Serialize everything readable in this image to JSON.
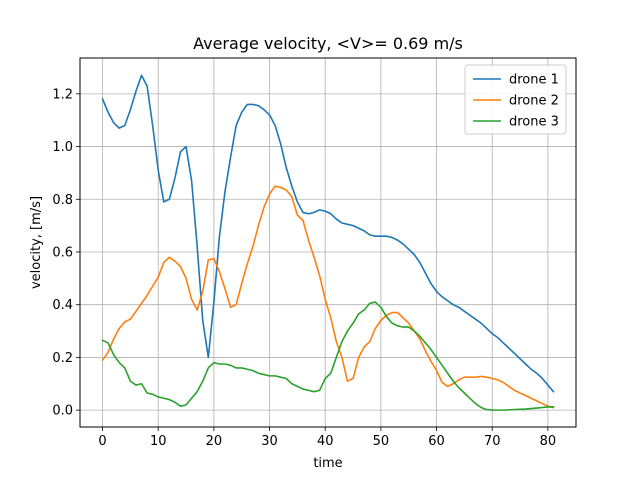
{
  "chart_data": {
    "type": "line",
    "title": "Average velocity, <V>= 0.69 m/s",
    "xlabel": "time",
    "ylabel": "velocity, [m/s]",
    "xlim": [
      -4.05,
      85.05
    ],
    "ylim": [
      -0.064,
      1.336
    ],
    "xticks": [
      0,
      10,
      20,
      30,
      40,
      50,
      60,
      70,
      80
    ],
    "yticks": [
      0.0,
      0.2,
      0.4,
      0.6,
      0.8,
      1.0,
      1.2
    ],
    "xtick_labels": [
      "0",
      "10",
      "20",
      "30",
      "40",
      "50",
      "60",
      "70",
      "80"
    ],
    "ytick_labels": [
      "0.0",
      "0.2",
      "0.4",
      "0.6",
      "0.8",
      "1.0",
      "1.2"
    ],
    "grid": true,
    "legend_position": "top-right",
    "x": [
      0,
      1,
      2,
      3,
      4,
      5,
      6,
      7,
      8,
      9,
      10,
      11,
      12,
      13,
      14,
      15,
      16,
      17,
      18,
      19,
      20,
      21,
      22,
      23,
      24,
      25,
      26,
      27,
      28,
      29,
      30,
      31,
      32,
      33,
      34,
      35,
      36,
      37,
      38,
      39,
      40,
      41,
      42,
      43,
      44,
      45,
      46,
      47,
      48,
      49,
      50,
      51,
      52,
      53,
      54,
      55,
      56,
      57,
      58,
      59,
      60,
      61,
      62,
      63,
      64,
      65,
      66,
      67,
      68,
      69,
      70,
      71,
      72,
      73,
      74,
      75,
      76,
      77,
      78,
      79,
      80,
      81
    ],
    "series": [
      {
        "name": "drone 1",
        "color": "#1f77b4",
        "values": [
          1.18,
          1.13,
          1.09,
          1.07,
          1.08,
          1.14,
          1.21,
          1.27,
          1.23,
          1.08,
          0.91,
          0.79,
          0.8,
          0.88,
          0.98,
          1.0,
          0.87,
          0.62,
          0.34,
          0.2,
          0.41,
          0.66,
          0.83,
          0.96,
          1.08,
          1.13,
          1.16,
          1.16,
          1.155,
          1.14,
          1.12,
          1.08,
          1.01,
          0.92,
          0.85,
          0.79,
          0.75,
          0.745,
          0.75,
          0.76,
          0.755,
          0.745,
          0.725,
          0.71,
          0.705,
          0.7,
          0.69,
          0.68,
          0.665,
          0.66,
          0.66,
          0.66,
          0.655,
          0.645,
          0.63,
          0.61,
          0.59,
          0.56,
          0.52,
          0.48,
          0.45,
          0.43,
          0.415,
          0.4,
          0.39,
          0.375,
          0.36,
          0.345,
          0.33,
          0.31,
          0.29,
          0.275,
          0.255,
          0.235,
          0.215,
          0.195,
          0.175,
          0.155,
          0.14,
          0.12,
          0.095,
          0.07
        ]
      },
      {
        "name": "drone 2",
        "color": "#ff7f0e",
        "values": [
          0.19,
          0.22,
          0.27,
          0.31,
          0.335,
          0.345,
          0.375,
          0.405,
          0.435,
          0.47,
          0.505,
          0.56,
          0.58,
          0.565,
          0.545,
          0.5,
          0.42,
          0.38,
          0.45,
          0.57,
          0.575,
          0.525,
          0.46,
          0.39,
          0.4,
          0.48,
          0.555,
          0.62,
          0.7,
          0.77,
          0.82,
          0.85,
          0.845,
          0.835,
          0.81,
          0.74,
          0.72,
          0.645,
          0.58,
          0.51,
          0.42,
          0.35,
          0.26,
          0.2,
          0.11,
          0.12,
          0.2,
          0.24,
          0.26,
          0.31,
          0.34,
          0.36,
          0.37,
          0.37,
          0.35,
          0.33,
          0.3,
          0.27,
          0.225,
          0.185,
          0.15,
          0.105,
          0.09,
          0.1,
          0.115,
          0.125,
          0.125,
          0.125,
          0.128,
          0.125,
          0.12,
          0.115,
          0.105,
          0.09,
          0.075,
          0.065,
          0.055,
          0.045,
          0.035,
          0.025,
          0.015,
          0.01
        ]
      },
      {
        "name": "drone 3",
        "color": "#2ca02c",
        "values": [
          0.265,
          0.255,
          0.21,
          0.18,
          0.16,
          0.11,
          0.095,
          0.1,
          0.065,
          0.06,
          0.05,
          0.045,
          0.04,
          0.03,
          0.015,
          0.02,
          0.045,
          0.07,
          0.11,
          0.16,
          0.18,
          0.175,
          0.175,
          0.17,
          0.16,
          0.16,
          0.155,
          0.15,
          0.14,
          0.135,
          0.13,
          0.13,
          0.125,
          0.12,
          0.1,
          0.09,
          0.08,
          0.075,
          0.07,
          0.075,
          0.12,
          0.14,
          0.2,
          0.26,
          0.3,
          0.33,
          0.365,
          0.38,
          0.405,
          0.41,
          0.39,
          0.355,
          0.33,
          0.32,
          0.315,
          0.315,
          0.3,
          0.28,
          0.255,
          0.23,
          0.2,
          0.17,
          0.14,
          0.11,
          0.085,
          0.065,
          0.045,
          0.025,
          0.01,
          0.002,
          0.0,
          0.0,
          0.0,
          0.001,
          0.002,
          0.003,
          0.004,
          0.006,
          0.008,
          0.01,
          0.012,
          0.012
        ]
      }
    ]
  }
}
